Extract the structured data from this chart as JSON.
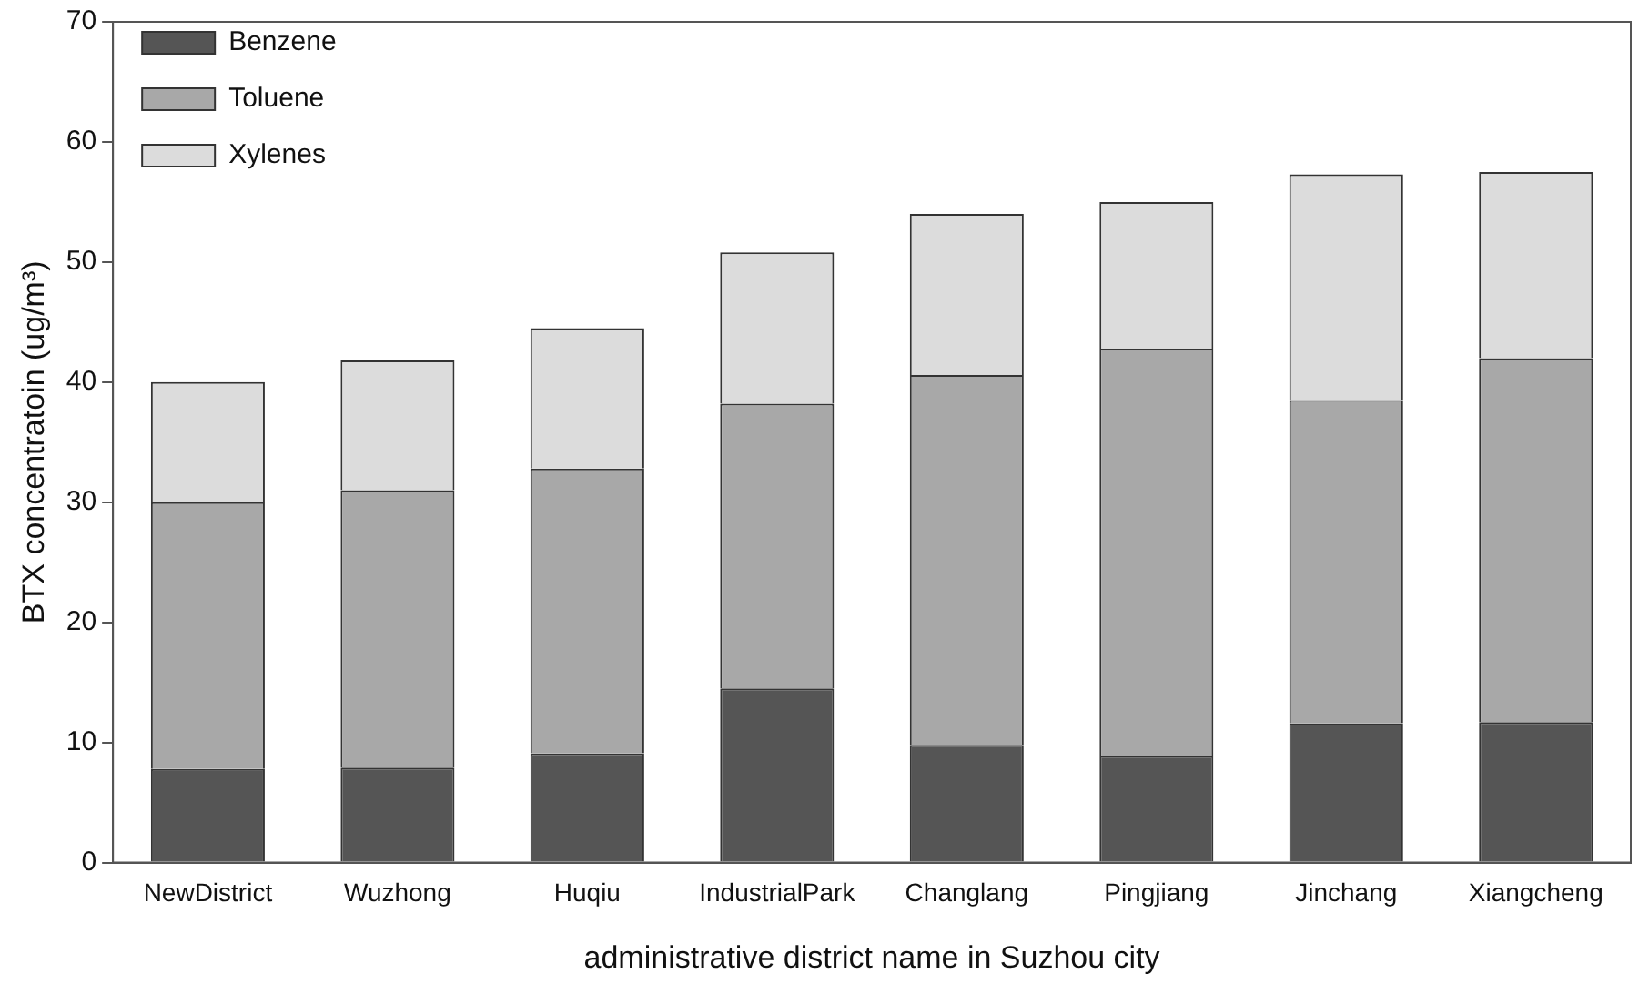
{
  "chart_data": {
    "type": "bar",
    "stacked": true,
    "xlabel": "administrative district name in Suzhou city",
    "ylabel": "BTX concentratoin (ug/m³)",
    "categories": [
      "NewDistrict",
      "Wuzhong",
      "Huqiu",
      "IndustrialPark",
      "Changlang",
      "Pingjiang",
      "Jinchang",
      "Xiangcheng"
    ],
    "series": [
      {
        "name": "Benzene",
        "color": "#555555",
        "values": [
          7.8,
          7.9,
          9.1,
          14.5,
          9.8,
          8.9,
          11.6,
          11.7
        ]
      },
      {
        "name": "Toluene",
        "color": "#a8a8a8",
        "values": [
          22.2,
          23.1,
          23.7,
          23.7,
          30.8,
          33.9,
          26.9,
          30.3
        ]
      },
      {
        "name": "Xylenes",
        "color": "#dcdcdc",
        "values": [
          10,
          10.8,
          11.7,
          12.6,
          13.4,
          12.2,
          18.8,
          15.5
        ]
      }
    ],
    "ylim": [
      0,
      70
    ],
    "yticks": [
      0,
      10,
      20,
      30,
      40,
      50,
      60,
      70
    ],
    "grid": false,
    "legend": "top left"
  }
}
